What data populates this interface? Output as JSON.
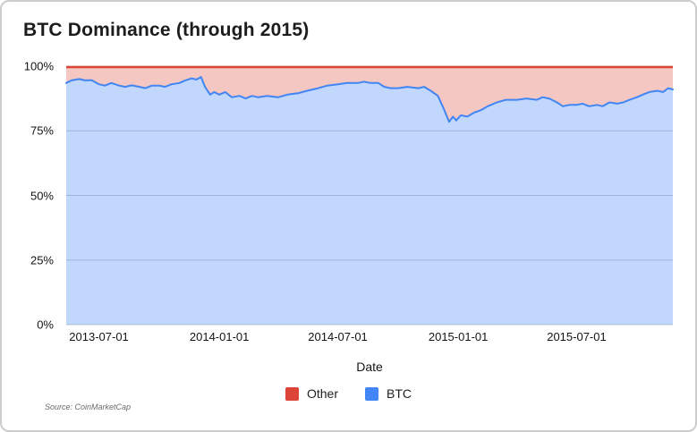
{
  "title": "BTC Dominance (through 2015)",
  "source": "Source: CoinMarketCap",
  "legend": [
    {
      "label": "Other",
      "color": "#db4437"
    },
    {
      "label": "BTC",
      "color": "#4285f4"
    }
  ],
  "chart_data": {
    "type": "area",
    "stacked": true,
    "stack_total": 100,
    "title": "BTC Dominance (through 2015)",
    "xlabel": "Date",
    "ylabel": "",
    "ylim": [
      0,
      100
    ],
    "grid": true,
    "legend_position": "bottom",
    "y_ticks": [
      "0%",
      "25%",
      "50%",
      "75%",
      "100%"
    ],
    "y_tick_values": [
      0,
      25,
      50,
      75,
      100
    ],
    "x_ticks": [
      "2013-07-01",
      "2014-01-01",
      "2014-07-01",
      "2015-01-01",
      "2015-07-01"
    ],
    "colors": {
      "btc_line": "#4285f4",
      "btc_fill": "rgba(66,133,244,0.33)",
      "other_line": "#db4437",
      "other_fill": "rgba(219,68,55,0.30)",
      "gridline": "#cccccc"
    },
    "series": [
      {
        "name": "BTC",
        "unit": "%",
        "points": [
          [
            "2013-05-12",
            93.5
          ],
          [
            "2013-05-20",
            94.5
          ],
          [
            "2013-06-01",
            95
          ],
          [
            "2013-06-10",
            94.5
          ],
          [
            "2013-06-20",
            94.6
          ],
          [
            "2013-07-01",
            93
          ],
          [
            "2013-07-10",
            92.5
          ],
          [
            "2013-07-20",
            93.5
          ],
          [
            "2013-08-01",
            92.5
          ],
          [
            "2013-08-10",
            92
          ],
          [
            "2013-08-20",
            92.6
          ],
          [
            "2013-09-01",
            92
          ],
          [
            "2013-09-10",
            91.5
          ],
          [
            "2013-09-20",
            92.5
          ],
          [
            "2013-10-01",
            92.5
          ],
          [
            "2013-10-10",
            92
          ],
          [
            "2013-10-20",
            93
          ],
          [
            "2013-11-01",
            93.5
          ],
          [
            "2013-11-10",
            94.5
          ],
          [
            "2013-11-20",
            95.3
          ],
          [
            "2013-11-27",
            94.8
          ],
          [
            "2013-12-04",
            95.8
          ],
          [
            "2013-12-10",
            92
          ],
          [
            "2013-12-18",
            89
          ],
          [
            "2013-12-24",
            90
          ],
          [
            "2014-01-01",
            89
          ],
          [
            "2014-01-10",
            90
          ],
          [
            "2014-01-20",
            88
          ],
          [
            "2014-02-01",
            88.5
          ],
          [
            "2014-02-10",
            87.5
          ],
          [
            "2014-02-20",
            88.5
          ],
          [
            "2014-03-01",
            88
          ],
          [
            "2014-03-15",
            88.5
          ],
          [
            "2014-04-01",
            88
          ],
          [
            "2014-04-15",
            89
          ],
          [
            "2014-05-01",
            89.5
          ],
          [
            "2014-05-15",
            90.5
          ],
          [
            "2014-06-01",
            91.5
          ],
          [
            "2014-06-15",
            92.5
          ],
          [
            "2014-07-01",
            93
          ],
          [
            "2014-07-15",
            93.5
          ],
          [
            "2014-08-01",
            93.5
          ],
          [
            "2014-08-10",
            94
          ],
          [
            "2014-08-20",
            93.5
          ],
          [
            "2014-09-01",
            93.5
          ],
          [
            "2014-09-10",
            92
          ],
          [
            "2014-09-20",
            91.5
          ],
          [
            "2014-10-01",
            91.5
          ],
          [
            "2014-10-15",
            92
          ],
          [
            "2014-11-01",
            91.5
          ],
          [
            "2014-11-10",
            92
          ],
          [
            "2014-11-20",
            90.5
          ],
          [
            "2014-12-01",
            88.5
          ],
          [
            "2014-12-10",
            83.5
          ],
          [
            "2014-12-18",
            78.5
          ],
          [
            "2014-12-24",
            80.5
          ],
          [
            "2014-12-29",
            79
          ],
          [
            "2015-01-05",
            81
          ],
          [
            "2015-01-15",
            80.5
          ],
          [
            "2015-01-25",
            82
          ],
          [
            "2015-02-05",
            83
          ],
          [
            "2015-02-15",
            84.5
          ],
          [
            "2015-03-01",
            86
          ],
          [
            "2015-03-15",
            87
          ],
          [
            "2015-04-01",
            87
          ],
          [
            "2015-04-15",
            87.5
          ],
          [
            "2015-05-01",
            87
          ],
          [
            "2015-05-10",
            88
          ],
          [
            "2015-05-20",
            87.5
          ],
          [
            "2015-06-01",
            86
          ],
          [
            "2015-06-10",
            84.5
          ],
          [
            "2015-06-20",
            85
          ],
          [
            "2015-07-01",
            85
          ],
          [
            "2015-07-10",
            85.5
          ],
          [
            "2015-07-20",
            84.5
          ],
          [
            "2015-08-01",
            85
          ],
          [
            "2015-08-10",
            84.5
          ],
          [
            "2015-08-20",
            86
          ],
          [
            "2015-09-01",
            85.5
          ],
          [
            "2015-09-10",
            86
          ],
          [
            "2015-09-20",
            87
          ],
          [
            "2015-10-01",
            88
          ],
          [
            "2015-10-10",
            89
          ],
          [
            "2015-10-20",
            90
          ],
          [
            "2015-11-01",
            90.5
          ],
          [
            "2015-11-10",
            90
          ],
          [
            "2015-11-18",
            91.5
          ],
          [
            "2015-11-25",
            91
          ]
        ]
      },
      {
        "name": "Other",
        "unit": "%",
        "note": "stacked remainder: Other = 100 - BTC at every point"
      }
    ]
  }
}
